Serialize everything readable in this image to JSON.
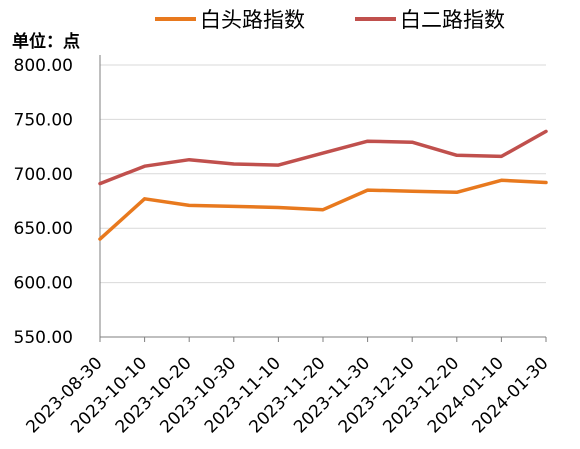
{
  "chart_data": {
    "type": "line",
    "unit_label": "单位：点",
    "categories": [
      "2023-08-30",
      "2023-10-10",
      "2023-10-20",
      "2023-10-30",
      "2023-11-10",
      "2023-11-20",
      "2023-11-30",
      "2023-12-10",
      "2023-12-20",
      "2024-01-10",
      "2024-01-30"
    ],
    "series": [
      {
        "name": "白头路指数",
        "color": "#E8791E",
        "values": [
          640,
          677,
          671,
          670,
          669,
          667,
          685,
          684,
          683,
          694,
          692
        ]
      },
      {
        "name": "白二路指数",
        "color": "#C0504D",
        "values": [
          691,
          707,
          713,
          709,
          708,
          719,
          730,
          729,
          717,
          716,
          739
        ]
      }
    ],
    "yticks": [
      "550.00",
      "600.00",
      "650.00",
      "700.00",
      "750.00",
      "800.00"
    ],
    "ylim": [
      550,
      800
    ],
    "grid": true,
    "legend_position": "top"
  }
}
